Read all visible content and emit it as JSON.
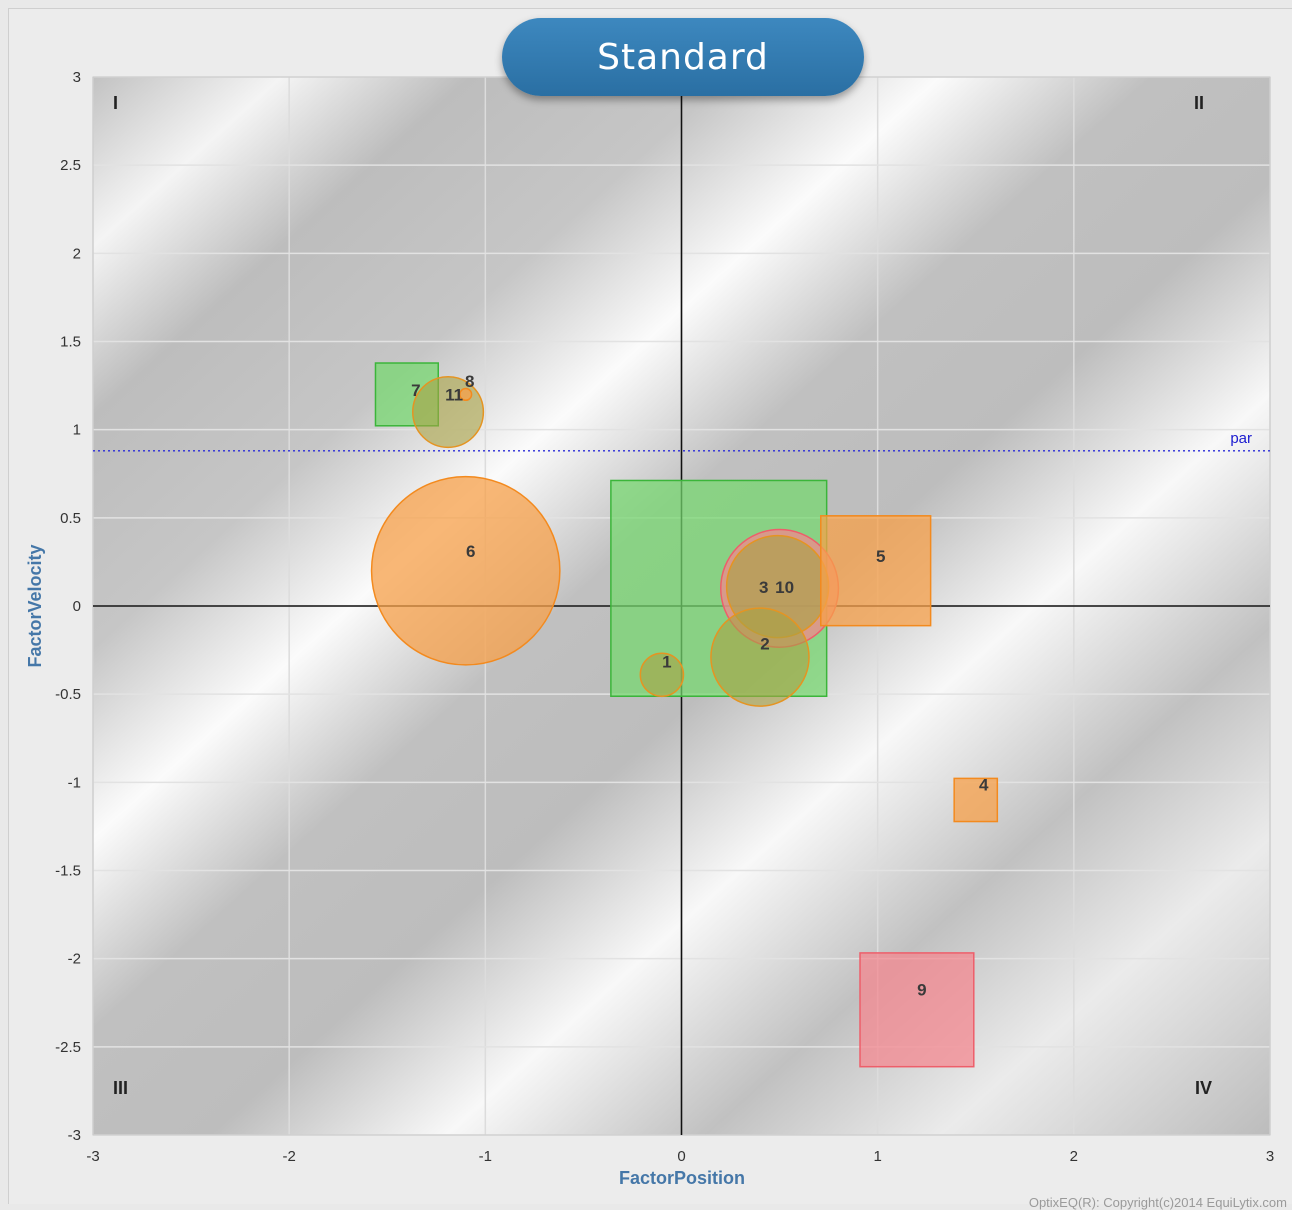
{
  "title": "Standard",
  "copyright": "OptixEQ(R): Copyright(c)2014 EquiLytix.com",
  "quadrants": [
    "I",
    "II",
    "III",
    "IV"
  ],
  "par_label": "par",
  "chart_data": {
    "type": "scatter",
    "xlabel": "FactorPosition",
    "ylabel": "FactorVelocity",
    "xlim": [
      -3,
      3
    ],
    "ylim": [
      -3,
      3
    ],
    "xticks": [
      "-3",
      "-2",
      "-1",
      "0",
      "1",
      "2",
      "3"
    ],
    "yticks": [
      "3",
      "2.5",
      "2",
      "1.5",
      "1",
      "0.5",
      "0",
      "-0.5",
      "-1",
      "-1.5",
      "-2",
      "-2.5",
      "-3"
    ],
    "grid": true,
    "par_line": 0.88,
    "colors": {
      "orange": "#f7a04a",
      "green": "#6fd66a",
      "red": "#f4878f",
      "olive": "#a3a048"
    },
    "points": [
      {
        "label": "6",
        "shape": "circle",
        "x": -1.1,
        "y": 0.2,
        "size": 0.48,
        "color": "orange"
      },
      {
        "label": "3",
        "shape": "square",
        "x": 0.19,
        "y": 0.1,
        "size": 0.55,
        "color": "green"
      },
      {
        "label": "10",
        "shape": "circle",
        "x": 0.5,
        "y": 0.1,
        "size": 0.3,
        "color": "red"
      },
      {
        "label": "10-overlay",
        "shape": "circle",
        "x": 0.49,
        "y": 0.11,
        "size": 0.26,
        "color": "olive"
      },
      {
        "label": "5",
        "shape": "square",
        "x": 0.99,
        "y": 0.2,
        "size": 0.28,
        "color": "orange"
      },
      {
        "label": "2",
        "shape": "circle",
        "x": 0.4,
        "y": -0.29,
        "size": 0.25,
        "color": "olive"
      },
      {
        "label": "1",
        "shape": "circle",
        "x": -0.1,
        "y": -0.39,
        "size": 0.11,
        "color": "olive"
      },
      {
        "label": "7",
        "shape": "square",
        "x": -1.4,
        "y": 1.2,
        "size": 0.16,
        "color": "green"
      },
      {
        "label": "11",
        "shape": "circle",
        "x": -1.19,
        "y": 1.1,
        "size": 0.18,
        "color": "olive"
      },
      {
        "label": "8",
        "shape": "circle",
        "x": -1.1,
        "y": 1.2,
        "size": 0.03,
        "color": "orange"
      },
      {
        "label": "4",
        "shape": "square",
        "x": 1.5,
        "y": -1.1,
        "size": 0.11,
        "color": "orange"
      },
      {
        "label": "9",
        "shape": "square",
        "x": 1.2,
        "y": -2.29,
        "size": 0.29,
        "color": "red"
      }
    ]
  }
}
